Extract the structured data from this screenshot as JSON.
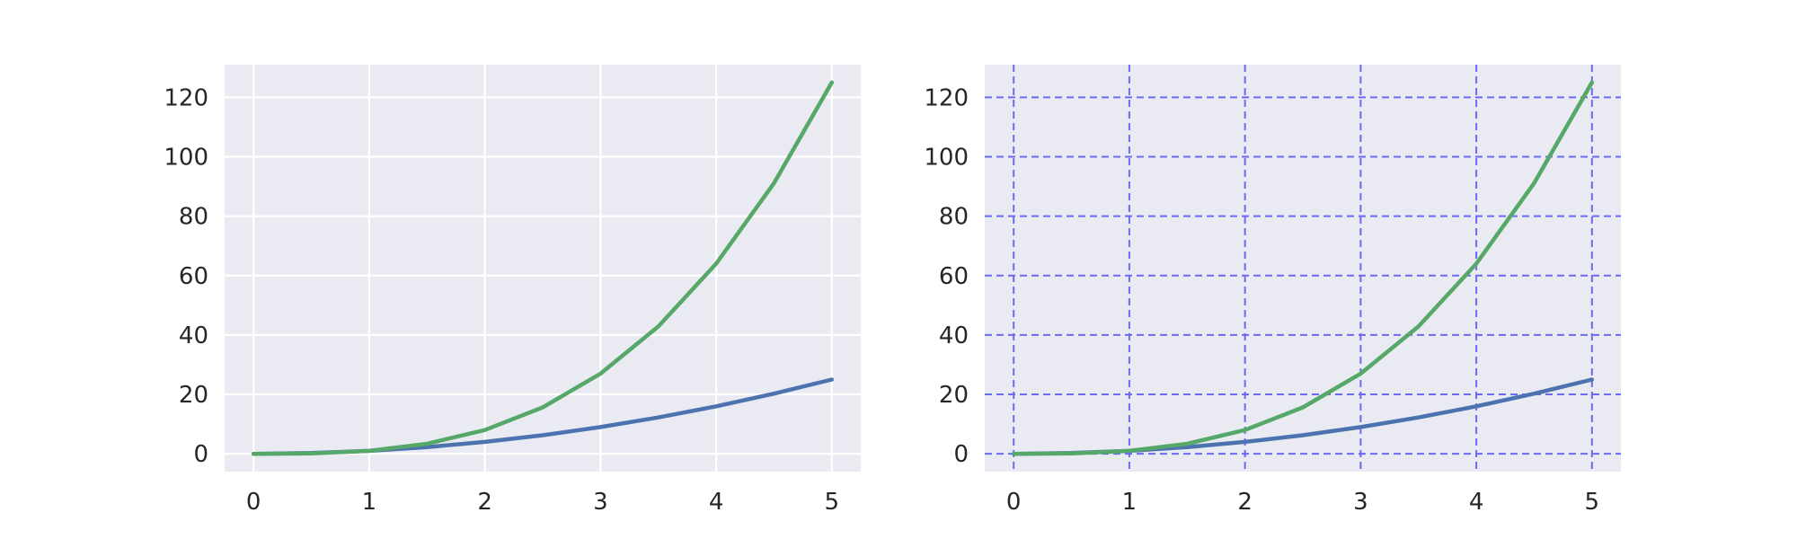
{
  "chart_data": [
    {
      "type": "line",
      "x": [
        0,
        0.5,
        1,
        1.5,
        2,
        2.5,
        3,
        3.5,
        4,
        4.5,
        5
      ],
      "series": [
        {
          "values": [
            0,
            0.25,
            1,
            2.25,
            4,
            6.25,
            9,
            12.25,
            16,
            20.25,
            25
          ],
          "color": "#4c72b0"
        },
        {
          "values": [
            0,
            0.125,
            1,
            3.375,
            8,
            15.625,
            27,
            42.875,
            64,
            91.125,
            125
          ],
          "color": "#55a868"
        }
      ],
      "xlim": [
        -0.25,
        5.25
      ],
      "ylim": [
        -6,
        131
      ],
      "xticks": [
        0,
        1,
        2,
        3,
        4,
        5
      ],
      "yticks": [
        0,
        20,
        40,
        60,
        80,
        100,
        120
      ],
      "grid": {
        "visible": true,
        "style": "solid",
        "color": "#ffffff"
      },
      "background": "#eaeaf2"
    },
    {
      "type": "line",
      "x": [
        0,
        0.5,
        1,
        1.5,
        2,
        2.5,
        3,
        3.5,
        4,
        4.5,
        5
      ],
      "series": [
        {
          "values": [
            0,
            0.25,
            1,
            2.25,
            4,
            6.25,
            9,
            12.25,
            16,
            20.25,
            25
          ],
          "color": "#4c72b0"
        },
        {
          "values": [
            0,
            0.125,
            1,
            3.375,
            8,
            15.625,
            27,
            42.875,
            64,
            91.125,
            125
          ],
          "color": "#55a868"
        }
      ],
      "xlim": [
        -0.25,
        5.25
      ],
      "ylim": [
        -6,
        131
      ],
      "xticks": [
        0,
        1,
        2,
        3,
        4,
        5
      ],
      "yticks": [
        0,
        20,
        40,
        60,
        80,
        100,
        120
      ],
      "grid": {
        "visible": true,
        "style": "dashed",
        "color": "#6b6bf2"
      },
      "background": "#eaeaf2"
    }
  ]
}
